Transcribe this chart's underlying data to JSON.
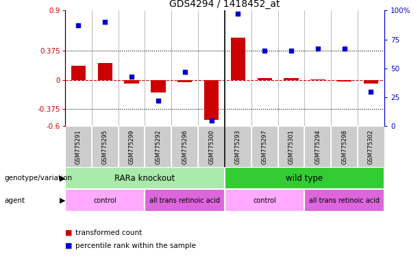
{
  "title": "GDS4294 / 1418452_at",
  "samples": [
    "GSM775291",
    "GSM775295",
    "GSM775299",
    "GSM775292",
    "GSM775296",
    "GSM775300",
    "GSM775293",
    "GSM775297",
    "GSM775301",
    "GSM775294",
    "GSM775298",
    "GSM775302"
  ],
  "red_values": [
    0.18,
    0.22,
    -0.05,
    -0.16,
    -0.03,
    -0.52,
    0.55,
    0.02,
    0.02,
    0.01,
    -0.02,
    -0.05
  ],
  "blue_values": [
    87,
    90,
    43,
    22,
    47,
    5,
    97,
    65,
    65,
    67,
    67,
    30
  ],
  "ylim_left": [
    -0.6,
    0.9
  ],
  "yticks_left": [
    -0.6,
    -0.375,
    0,
    0.375,
    0.9
  ],
  "ylim_right": [
    0,
    100
  ],
  "ytick_labels_right": [
    "0",
    "25",
    "50",
    "75",
    "100%"
  ],
  "hlines": [
    0.375,
    -0.375
  ],
  "zero_line": 0,
  "genotype_groups": [
    {
      "label": "RARa knockout",
      "start": 0,
      "end": 6,
      "color": "#aaeaaa"
    },
    {
      "label": "wild type",
      "start": 6,
      "end": 12,
      "color": "#33cc33"
    }
  ],
  "agent_groups": [
    {
      "label": "control",
      "start": 0,
      "end": 3,
      "color": "#ffaaff"
    },
    {
      "label": "all trans retinoic acid",
      "start": 3,
      "end": 6,
      "color": "#dd66dd"
    },
    {
      "label": "control",
      "start": 6,
      "end": 9,
      "color": "#ffaaff"
    },
    {
      "label": "all trans retinoic acid",
      "start": 9,
      "end": 12,
      "color": "#dd66dd"
    }
  ],
  "legend_items": [
    {
      "label": "transformed count",
      "color": "#cc0000"
    },
    {
      "label": "percentile rank within the sample",
      "color": "#0000cc"
    }
  ],
  "bar_color": "#cc0000",
  "scatter_color": "#0000cc",
  "bar_width": 0.55,
  "title_fontsize": 10,
  "tick_fontsize": 7.5,
  "label_fontsize": 8.5,
  "sample_bg_color": "#cccccc",
  "sample_border_color": "#aaaaaa"
}
